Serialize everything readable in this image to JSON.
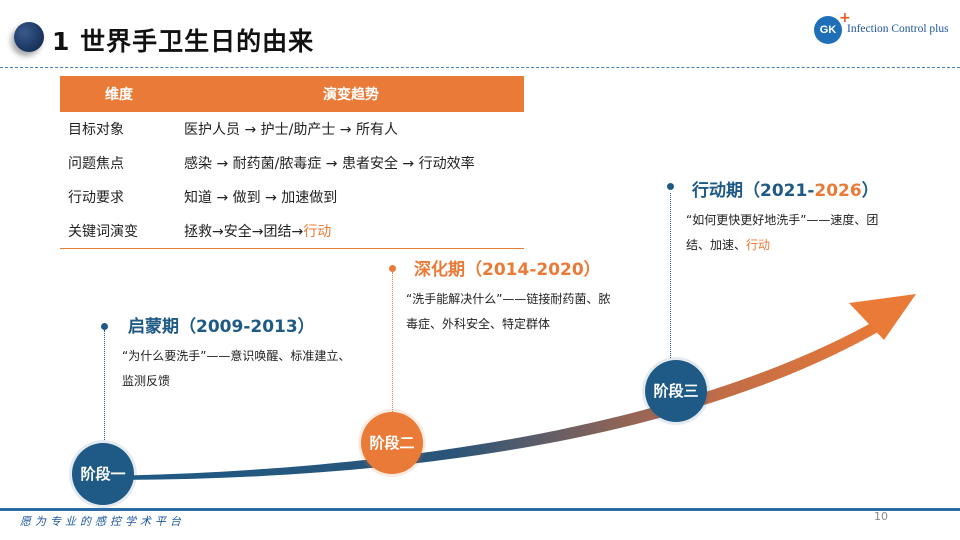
{
  "header": {
    "title": "1  世界手卫生日的由来",
    "logo_mark": "GK",
    "logo_text": "Infection Control plus"
  },
  "table": {
    "headers": [
      "维度",
      "演变趋势"
    ],
    "rows": [
      {
        "dimension": "目标对象",
        "trend": "医护人员 → 护士/助产士 → 所有人",
        "highlight": ""
      },
      {
        "dimension": "问题焦点",
        "trend": "感染 → 耐药菌/脓毒症 → 患者安全 → 行动效率",
        "highlight": ""
      },
      {
        "dimension": "行动要求",
        "trend": "知道 → 做到 → 加速做到",
        "highlight": ""
      },
      {
        "dimension": "关键词演变",
        "trend": "拯救→安全→团结→",
        "highlight": "行动"
      }
    ]
  },
  "stages": [
    {
      "label": "阶段一",
      "title": "启蒙期（2009-2013）",
      "desc": "“为什么要洗手”——意识唤醒、标准建立、监测反馈",
      "desc_highlight": ""
    },
    {
      "label": "阶段二",
      "title": "深化期（2014-2020）",
      "desc": "“洗手能解决什么”——链接耐药菌、脓毒症、外科安全、特定群体",
      "desc_highlight": ""
    },
    {
      "label": "阶段三",
      "title_main": "行动期（2021-",
      "title_highlight": "2026",
      "title_end": "）",
      "desc": "“如何更快更好地洗手”——速度、团结、加速、",
      "desc_highlight": "行动"
    }
  ],
  "footer": {
    "slogan": "愿为专业的感控学术平台",
    "page_number": "10"
  },
  "colors": {
    "accent_orange": "#ea7a37",
    "accent_blue": "#1e5a85",
    "title_blue": "#1e5a85",
    "footer_blue": "#2d6aa3"
  }
}
